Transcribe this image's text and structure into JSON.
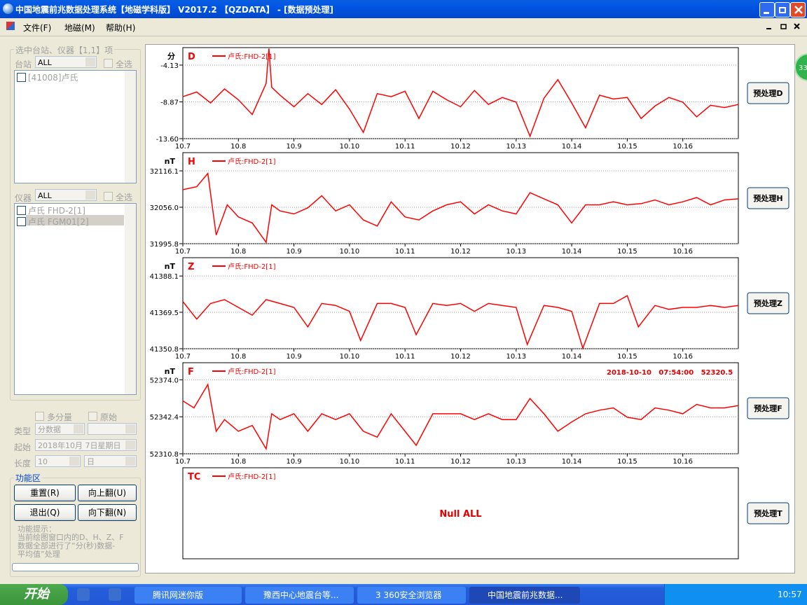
{
  "window": {
    "title": "中国地震前兆数据处理系统【地磁学科版】 V2017.2 【QZDATA】 - [数据预处理]",
    "menu": [
      "文件(F)",
      "地磁(M)",
      "帮助(H)"
    ]
  },
  "left_panel": {
    "group_title": "选中台站、仪器【1,1】项",
    "station_label": "台站",
    "station_combo": "ALL",
    "select_all": "全选",
    "stations": [
      "[41008]卢氏"
    ],
    "instrument_label": "仪器",
    "instrument_combo": "ALL",
    "instruments": [
      "卢氏 FHD-2[1]",
      "卢氏 FGM01[2]"
    ],
    "multi_component": "多分量",
    "raw": "原始",
    "type_label": "类型",
    "type_value": "分数据",
    "start_label": "起始",
    "start_value": "2018年10月 7日星期日",
    "length_label": "长度",
    "length_value": "10",
    "length_unit": "日",
    "function_title": "功能区",
    "buttons": [
      "重置(R)",
      "向上翻(U)",
      "退出(Q)",
      "向下翻(N)"
    ],
    "hint": "功能提示：\n当前绘图窗口内的D、H、Z、F\n数据全部进行了“分(秒)数据-\n平均值”处理"
  },
  "chart_data": [
    {
      "type": "line",
      "title": "D",
      "y_label": "分",
      "button": "预处理D",
      "x": [
        7,
        7.25,
        7.5,
        7.75,
        8,
        8.25,
        8.5,
        8.55,
        8.6,
        8.75,
        9,
        9.25,
        9.5,
        9.75,
        10,
        10.25,
        10.5,
        10.75,
        11,
        11.25,
        11.5,
        11.75,
        12,
        12.25,
        12.5,
        12.75,
        13,
        13.25,
        13.5,
        13.75,
        14,
        14.25,
        14.5,
        14.75,
        15,
        15.25,
        15.5,
        15.75,
        16,
        16.25,
        16.5,
        16.75,
        17
      ],
      "series": [
        {
          "name": "卢氏:FHD-2[1]",
          "color": "#ff0000",
          "values": [
            -8.2,
            -7.6,
            -9.0,
            -7.2,
            -8.6,
            -10.5,
            -6.5,
            -2.0,
            -7.0,
            -8.0,
            -9.5,
            -7.8,
            -9.2,
            -7.3,
            -9.8,
            -12.8,
            -7.8,
            -8.2,
            -7.5,
            -11.0,
            -7.5,
            -8.6,
            -9.5,
            -7.4,
            -9.2,
            -8.3,
            -8.9,
            -13.3,
            -8.4,
            -6.0,
            -9.0,
            -12.2,
            -8.0,
            -8.5,
            -8.3,
            -11.0,
            -9.4,
            -8.3,
            -8.9,
            -10.8,
            -9.3,
            -9.6,
            -9.2
          ]
        }
      ],
      "xlim": [
        7,
        17
      ],
      "xticks": [
        {
          "value": 7,
          "label": "10.7"
        },
        {
          "value": 8,
          "label": "10.8"
        },
        {
          "value": 9,
          "label": "10.9"
        },
        {
          "value": 10,
          "label": "10.10"
        },
        {
          "value": 11,
          "label": "10.11"
        },
        {
          "value": 12,
          "label": "10.12"
        },
        {
          "value": 13,
          "label": "10.13"
        },
        {
          "value": 14,
          "label": "10.14"
        },
        {
          "value": 15,
          "label": "10.15"
        },
        {
          "value": 16,
          "label": "10.16"
        }
      ],
      "ylim": [
        -13.6,
        -1.88
      ],
      "yticks": [
        {
          "value": -13.6,
          "label": "-13.60"
        },
        -8.87,
        -4.13
      ],
      "grid": true
    },
    {
      "type": "line",
      "title": "H",
      "y_label": "nT",
      "button": "预处理H",
      "x": [
        7,
        7.25,
        7.45,
        7.6,
        7.8,
        8,
        8.25,
        8.5,
        8.6,
        8.75,
        9,
        9.25,
        9.5,
        9.75,
        10,
        10.25,
        10.5,
        10.75,
        11,
        11.25,
        11.5,
        11.75,
        12,
        12.25,
        12.5,
        12.75,
        13,
        13.25,
        13.5,
        13.75,
        14,
        14.25,
        14.5,
        14.75,
        15,
        15.25,
        15.5,
        15.75,
        16,
        16.25,
        16.5,
        16.75,
        17
      ],
      "series": [
        {
          "name": "卢氏:FHD-2[1]",
          "color": "#ff0000",
          "values": [
            32085,
            32090,
            32112,
            32010,
            32060,
            32040,
            32030,
            31998,
            32060,
            32050,
            32045,
            32055,
            32075,
            32050,
            32060,
            32035,
            32025,
            32065,
            32040,
            32035,
            32050,
            32060,
            32065,
            32045,
            32060,
            32050,
            32045,
            32080,
            32070,
            32060,
            32030,
            32060,
            32060,
            32065,
            32060,
            32062,
            32068,
            32060,
            32065,
            32072,
            32060,
            32068,
            32070
          ]
        }
      ],
      "xlim": [
        7,
        17
      ],
      "xticks": [
        {
          "value": 7,
          "label": "10.7"
        },
        {
          "value": 8,
          "label": "10.8"
        },
        {
          "value": 9,
          "label": "10.9"
        },
        {
          "value": 10,
          "label": "10.10"
        },
        {
          "value": 11,
          "label": "10.11"
        },
        {
          "value": 12,
          "label": "10.12"
        },
        {
          "value": 13,
          "label": "10.13"
        },
        {
          "value": 14,
          "label": "10.14"
        },
        {
          "value": 15,
          "label": "10.15"
        },
        {
          "value": 16,
          "label": "10.16"
        }
      ],
      "ylim": [
        31995.8,
        32146.2
      ],
      "yticks": [
        31995.8,
        {
          "value": 32056,
          "label": "32056.0"
        },
        32116.1
      ],
      "grid": true
    },
    {
      "type": "line",
      "title": "Z",
      "y_label": "nT",
      "button": "预处理Z",
      "x": [
        7,
        7.25,
        7.5,
        7.75,
        8,
        8.25,
        8.5,
        8.75,
        9,
        9.25,
        9.5,
        9.75,
        10,
        10.2,
        10.5,
        10.75,
        11,
        11.2,
        11.5,
        11.75,
        12,
        12.25,
        12.5,
        12.75,
        13,
        13.2,
        13.5,
        13.75,
        14,
        14.2,
        14.5,
        14.75,
        15,
        15.2,
        15.5,
        15.75,
        16,
        16.25,
        16.5,
        16.75,
        17
      ],
      "series": [
        {
          "name": "卢氏:FHD-2[1]",
          "color": "#ff0000",
          "values": [
            41375,
            41366,
            41374,
            41376,
            41372,
            41368,
            41376,
            41374,
            41372,
            41362,
            41374,
            41373,
            41370,
            41355,
            41374,
            41374,
            41372,
            41358,
            41374,
            41373,
            41374,
            41370,
            41374,
            41373,
            41372,
            41353,
            41373,
            41372,
            41370,
            41351,
            41374,
            41374,
            41378,
            41362,
            41373,
            41371,
            41372,
            41372,
            41373,
            41372,
            41373
          ]
        }
      ],
      "xlim": [
        7,
        17
      ],
      "xticks": [
        {
          "value": 7,
          "label": "10.7"
        },
        {
          "value": 8,
          "label": "10.8"
        },
        {
          "value": 9,
          "label": "10.9"
        },
        {
          "value": 10,
          "label": "10.10"
        },
        {
          "value": 11,
          "label": "10.11"
        },
        {
          "value": 12,
          "label": "10.12"
        },
        {
          "value": 13,
          "label": "10.13"
        },
        {
          "value": 14,
          "label": "10.14"
        },
        {
          "value": 15,
          "label": "10.15"
        },
        {
          "value": 16,
          "label": "10.16"
        }
      ],
      "ylim": [
        41350.8,
        41397.5
      ],
      "yticks": [
        41350.8,
        41369.5,
        41388.1
      ],
      "grid": true
    },
    {
      "type": "line",
      "title": "F",
      "y_label": "nT",
      "button": "预处理F",
      "annotation": "2018-10-10   07:54:00   52320.5",
      "x": [
        7,
        7.2,
        7.45,
        7.6,
        7.75,
        8,
        8.25,
        8.5,
        8.6,
        8.75,
        9,
        9.25,
        9.5,
        9.75,
        10,
        10.25,
        10.5,
        10.75,
        11,
        11.2,
        11.5,
        11.75,
        12,
        12.25,
        12.5,
        12.75,
        13,
        13.25,
        13.5,
        13.75,
        14,
        14.25,
        14.5,
        14.75,
        15,
        15.25,
        15.5,
        15.75,
        16,
        16.25,
        16.5,
        16.75,
        17
      ],
      "series": [
        {
          "name": "卢氏:FHD-2[1]",
          "color": "#ff0000",
          "values": [
            52356,
            52350,
            52370,
            52330,
            52340,
            52330,
            52335,
            52315,
            52345,
            52340,
            52345,
            52330,
            52345,
            52340,
            52345,
            52330,
            52325,
            52345,
            52330,
            52318,
            52345,
            52345,
            52345,
            52340,
            52345,
            52340,
            52340,
            52358,
            52345,
            52330,
            52338,
            52345,
            52348,
            52350,
            52342,
            52340,
            52350,
            52348,
            52345,
            52353,
            52350,
            52350,
            52352
          ]
        }
      ],
      "xlim": [
        7,
        17
      ],
      "xticks": [
        {
          "value": 7,
          "label": "10.7"
        },
        {
          "value": 8,
          "label": "10.8"
        },
        {
          "value": 9,
          "label": "10.9"
        },
        {
          "value": 10,
          "label": "10.10"
        },
        {
          "value": 11,
          "label": "10.11"
        },
        {
          "value": 12,
          "label": "10.12"
        },
        {
          "value": 13,
          "label": "10.13"
        },
        {
          "value": 14,
          "label": "10.14"
        },
        {
          "value": 15,
          "label": "10.15"
        },
        {
          "value": 16,
          "label": "10.16"
        }
      ],
      "ylim": [
        52310.8,
        52388.6
      ],
      "yticks": [
        52310.8,
        52342.4,
        {
          "value": 52374,
          "label": "52374.0"
        }
      ],
      "grid": true
    },
    {
      "type": "line",
      "title": "TC",
      "button": "预处理T",
      "annotation": "Null ALL",
      "x": [],
      "series": [
        {
          "name": "卢氏:FHD-2[1]",
          "color": "#ff0000",
          "values": []
        }
      ]
    }
  ],
  "badge": "33",
  "taskbar": {
    "start": "开始",
    "tasks": [
      "腾讯网迷你版",
      "豫西中心地震台等...",
      "3 360安全浏览器",
      "中国地震前兆数据..."
    ],
    "clock": "10:57"
  }
}
